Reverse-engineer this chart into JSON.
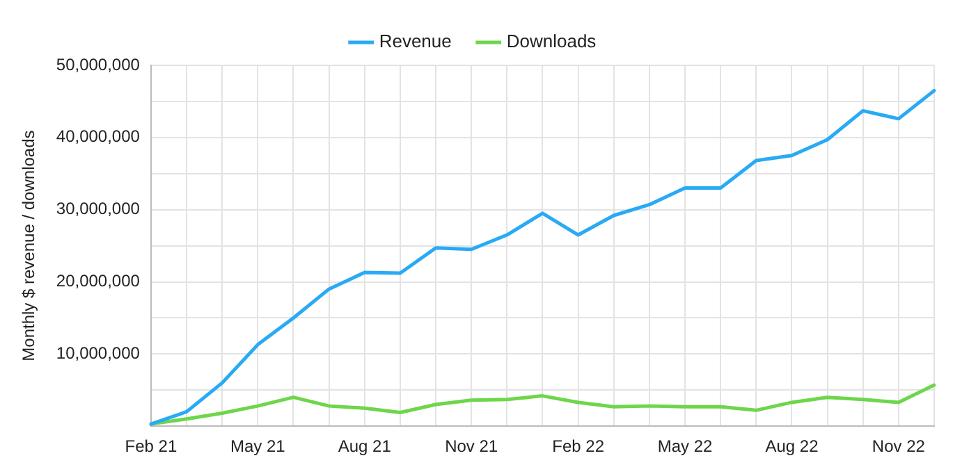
{
  "chart_data": {
    "type": "line",
    "ylabel": "Monthly $ revenue / downloads",
    "categories": [
      "Feb 21",
      null,
      null,
      "May 21",
      null,
      null,
      "Aug 21",
      null,
      null,
      "Nov 21",
      null,
      null,
      "Feb 22",
      null,
      null,
      "May 22",
      null,
      null,
      "Aug 22",
      null,
      null,
      "Nov 22",
      null
    ],
    "series": [
      {
        "name": "Revenue",
        "color": "#29aaf4",
        "values": [
          300000,
          2000000,
          6000000,
          11300000,
          15000000,
          19000000,
          21300000,
          21200000,
          24700000,
          24500000,
          26500000,
          29500000,
          26500000,
          29200000,
          30700000,
          33000000,
          33000000,
          36800000,
          37500000,
          39700000,
          43700000,
          42600000,
          46500000
        ]
      },
      {
        "name": "Downloads",
        "color": "#6ed64a",
        "values": [
          300000,
          1000000,
          1800000,
          2800000,
          4000000,
          2800000,
          2500000,
          1900000,
          3000000,
          3600000,
          3700000,
          4200000,
          3300000,
          2700000,
          2800000,
          2700000,
          2700000,
          2200000,
          3300000,
          4000000,
          3700000,
          3300000,
          5700000
        ]
      }
    ],
    "ylim": [
      0,
      50000000
    ],
    "yticks": [
      {
        "value": 0,
        "label": null
      },
      {
        "value": 5000000,
        "label": null
      },
      {
        "value": 10000000,
        "label": "10,000,000"
      },
      {
        "value": 15000000,
        "label": null
      },
      {
        "value": 20000000,
        "label": "20,000,000"
      },
      {
        "value": 25000000,
        "label": null
      },
      {
        "value": 30000000,
        "label": "30,000,000"
      },
      {
        "value": 35000000,
        "label": null
      },
      {
        "value": 40000000,
        "label": "40,000,000"
      },
      {
        "value": 45000000,
        "label": null
      },
      {
        "value": 50000000,
        "label": "50,000,000"
      }
    ],
    "grid": true,
    "legend": "top",
    "marker": "none",
    "line_style": "solid"
  }
}
